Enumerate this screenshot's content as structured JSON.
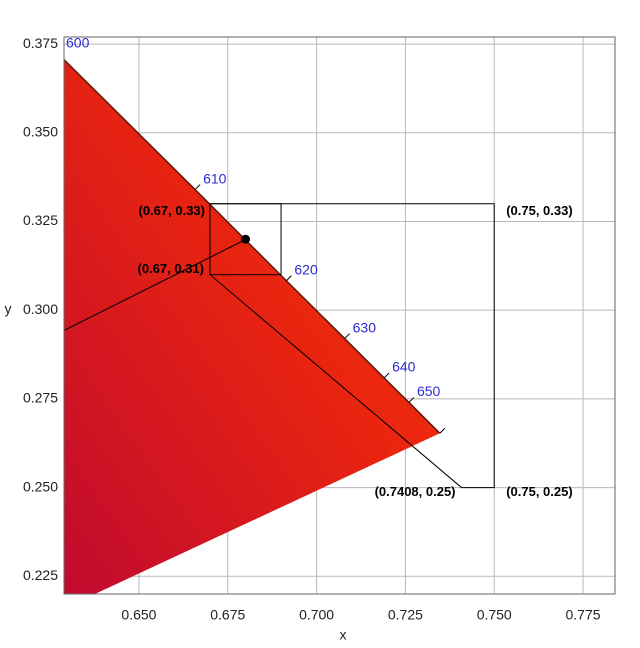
{
  "chart_data": {
    "type": "scatter",
    "x_label": "x",
    "y_label": "y",
    "xlim": [
      0.6289,
      0.784
    ],
    "ylim": [
      0.22,
      0.377
    ],
    "xticks": [
      {
        "value": 0.65,
        "label": "0.650"
      },
      0.675,
      {
        "value": 0.7,
        "label": "0.700"
      },
      0.725,
      {
        "value": 0.75,
        "label": "0.750"
      },
      0.775
    ],
    "yticks": [
      0.225,
      {
        "value": 0.25,
        "label": "0.250"
      },
      0.275,
      {
        "value": 0.3,
        "label": "0.300"
      },
      0.325,
      {
        "value": 0.35,
        "label": "0.350"
      },
      0.375
    ],
    "grid": true,
    "gamut": {
      "color": "#e8260f",
      "x": [
        0.627,
        0.7347,
        0.6376,
        0.627
      ],
      "y": [
        0.3725,
        0.2653,
        0.22,
        0.22
      ]
    },
    "spectral_locus": {
      "color": "#5a1a0a",
      "wavelengths": [
        600,
        610,
        620,
        630,
        640,
        650,
        null
      ],
      "x": [
        0.627,
        0.6658,
        0.6915,
        0.7079,
        0.719,
        0.726,
        0.7347
      ],
      "y": [
        0.3725,
        0.334,
        0.3083,
        0.292,
        0.2809,
        0.274,
        0.2653
      ]
    },
    "line": {
      "x": [
        0.6289,
        0.6804
      ],
      "y": [
        0.2943,
        0.3201
      ]
    },
    "point": {
      "x": 0.68,
      "y": 0.32,
      "color": "#000000"
    },
    "small_box": {
      "x": [
        0.67,
        0.69
      ],
      "y": [
        0.31,
        0.33
      ]
    },
    "region": {
      "x": [
        0.67,
        0.75,
        0.75,
        0.7408,
        0.67
      ],
      "y": [
        0.33,
        0.33,
        0.25,
        0.25,
        0.31
      ],
      "labels": [
        "(0.67, 0.33)",
        "(0.75, 0.33)",
        "(0.75, 0.25)",
        "(0.7408, 0.25)",
        "(0.67, 0.31)"
      ]
    }
  }
}
